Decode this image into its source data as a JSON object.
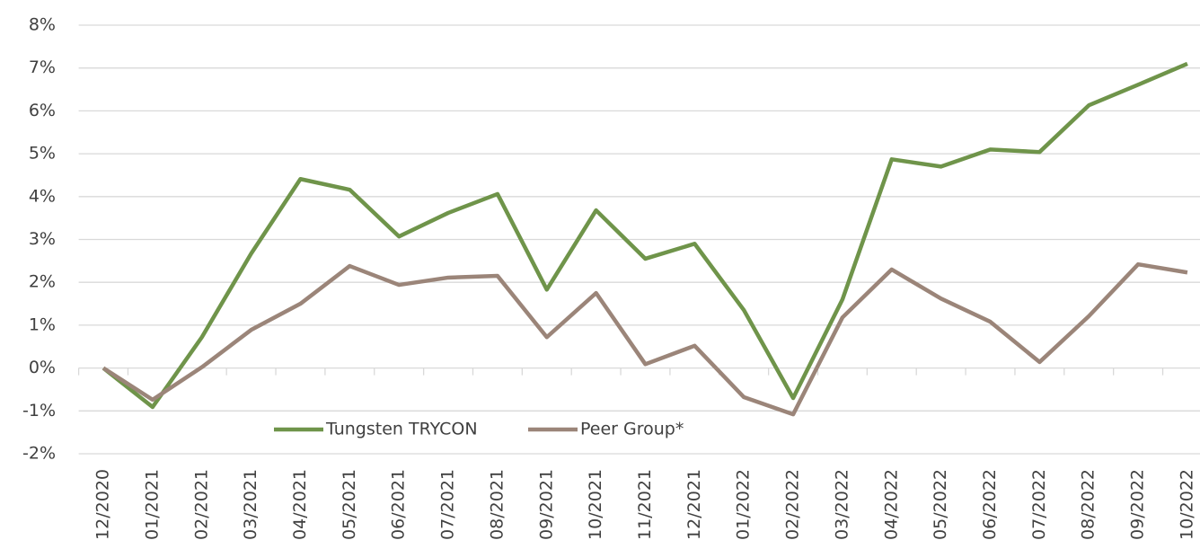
{
  "chart_data": {
    "type": "line",
    "categories": [
      "12/2020",
      "01/2021",
      "02/2021",
      "03/2021",
      "04/2021",
      "05/2021",
      "06/2021",
      "07/2021",
      "08/2021",
      "09/2021",
      "10/2021",
      "11/2021",
      "12/2021",
      "01/2022",
      "02/2022",
      "03/2022",
      "04/2022",
      "05/2022",
      "06/2022",
      "07/2022",
      "08/2022",
      "09/2022",
      "10/2022"
    ],
    "series": [
      {
        "name": "Tungsten TRYCON",
        "color": "#6f944a",
        "values": [
          0,
          -0.91,
          0.72,
          2.67,
          4.41,
          4.16,
          3.07,
          3.62,
          4.06,
          1.83,
          3.68,
          2.55,
          2.9,
          1.35,
          -0.7,
          1.6,
          4.87,
          4.7,
          5.1,
          5.04,
          6.13,
          6.61,
          7.1
        ]
      },
      {
        "name": "Peer Group*",
        "color": "#9b8579",
        "values": [
          0,
          -0.74,
          0.02,
          0.89,
          1.5,
          2.38,
          1.94,
          2.11,
          2.15,
          0.72,
          1.75,
          0.09,
          0.52,
          -0.68,
          -1.08,
          1.18,
          2.3,
          1.62,
          1.08,
          0.14,
          1.21,
          2.42,
          2.23
        ]
      }
    ],
    "ylim": [
      -2,
      8
    ],
    "yticks": [
      {
        "value": -2,
        "label": "-2%"
      },
      {
        "value": -1,
        "label": "-1%"
      },
      {
        "value": 0,
        "label": "0%"
      },
      {
        "value": 1,
        "label": "1%"
      },
      {
        "value": 2,
        "label": "2%"
      },
      {
        "value": 3,
        "label": "3%"
      },
      {
        "value": 4,
        "label": "4%"
      },
      {
        "value": 5,
        "label": "5%"
      },
      {
        "value": 6,
        "label": "6%"
      },
      {
        "value": 7,
        "label": "7%"
      },
      {
        "value": 8,
        "label": "8%"
      }
    ],
    "grid": true,
    "legend": "bottom"
  }
}
